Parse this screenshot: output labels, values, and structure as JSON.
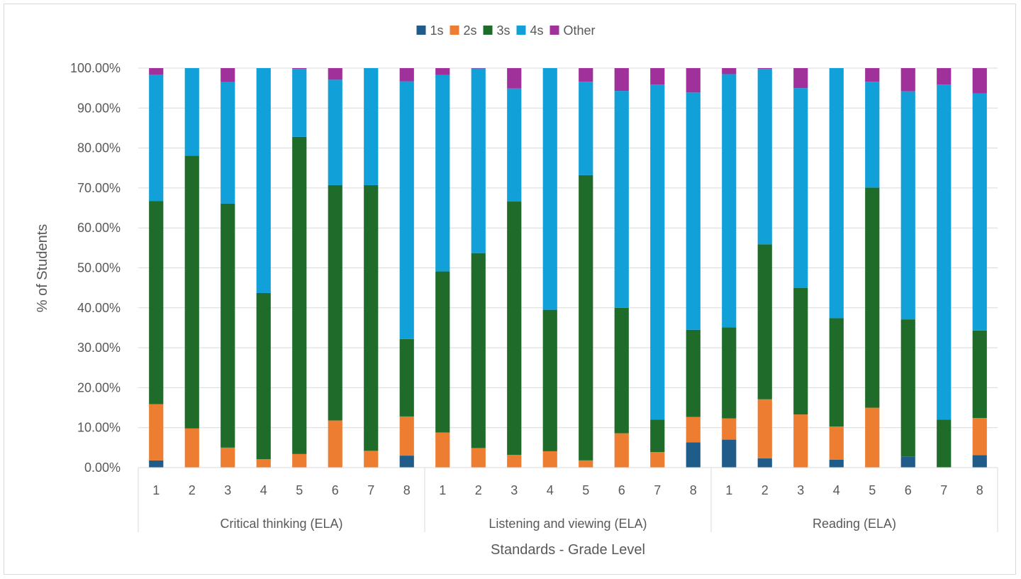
{
  "chart_data": {
    "type": "bar",
    "stacked": true,
    "title": "",
    "xlabel": "Standards - Grade Level",
    "ylabel": "% of Students",
    "ylim": [
      0,
      100
    ],
    "y_ticks": [
      "0.00%",
      "10.00%",
      "20.00%",
      "30.00%",
      "40.00%",
      "50.00%",
      "60.00%",
      "70.00%",
      "80.00%",
      "90.00%",
      "100.00%"
    ],
    "grid": true,
    "legend_position": "top",
    "groups": [
      {
        "label": "Critical thinking (ELA)",
        "categories": [
          "1",
          "2",
          "3",
          "4",
          "5",
          "6",
          "7",
          "8"
        ]
      },
      {
        "label": "Listening and viewing (ELA)",
        "categories": [
          "1",
          "2",
          "3",
          "4",
          "5",
          "6",
          "7",
          "8"
        ]
      },
      {
        "label": "Reading (ELA)",
        "categories": [
          "1",
          "2",
          "3",
          "4",
          "5",
          "6",
          "7",
          "8"
        ]
      }
    ],
    "series": [
      {
        "name": "1s",
        "color": "#1f5c8a",
        "values": [
          1.8,
          0,
          0,
          0,
          0,
          0,
          0,
          3.0,
          0,
          0,
          0,
          0,
          0,
          0,
          0,
          6.3,
          7.0,
          2.3,
          0,
          2.0,
          0,
          2.8,
          0,
          3.1
        ]
      },
      {
        "name": "2s",
        "color": "#ed7d31",
        "values": [
          14.1,
          9.8,
          5.0,
          2.1,
          3.4,
          11.8,
          4.2,
          9.8,
          8.8,
          4.9,
          3.2,
          4.1,
          1.8,
          8.6,
          3.9,
          6.4,
          5.3,
          14.8,
          13.3,
          8.3,
          15.0,
          0,
          0,
          9.3
        ]
      },
      {
        "name": "3s",
        "color": "#1e6b2a",
        "values": [
          50.8,
          68.3,
          61.1,
          41.6,
          79.4,
          58.9,
          66.5,
          19.4,
          40.3,
          48.8,
          63.4,
          35.4,
          71.4,
          31.4,
          8.1,
          21.8,
          22.8,
          38.8,
          31.7,
          27.1,
          55.1,
          34.3,
          12.0,
          21.9
        ]
      },
      {
        "name": "4s",
        "color": "#12a0d8",
        "values": [
          31.7,
          21.9,
          30.4,
          56.3,
          17.0,
          26.4,
          29.3,
          64.5,
          49.2,
          46.2,
          28.3,
          60.5,
          23.4,
          54.3,
          83.9,
          59.4,
          63.4,
          43.9,
          50.0,
          62.6,
          26.5,
          57.1,
          83.9,
          59.4
        ]
      },
      {
        "name": "Other",
        "color": "#a0309a",
        "values": [
          1.6,
          0,
          3.5,
          0,
          0.2,
          2.9,
          0,
          3.3,
          1.7,
          0.1,
          5.1,
          0,
          3.4,
          5.7,
          4.1,
          6.1,
          1.5,
          0.2,
          5.0,
          0,
          3.4,
          5.8,
          4.1,
          6.3
        ]
      }
    ]
  }
}
